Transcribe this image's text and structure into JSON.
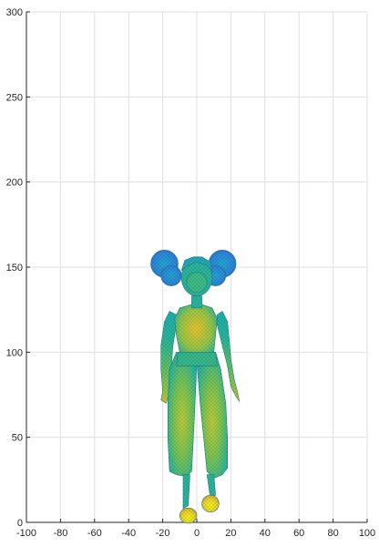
{
  "chart_data": {
    "type": "scatter",
    "title": "",
    "xlabel": "",
    "ylabel": "",
    "xlim": [
      -100,
      100
    ],
    "ylim": [
      0,
      300
    ],
    "x_ticks": [
      -100,
      -80,
      -60,
      -40,
      -20,
      0,
      20,
      40,
      60,
      80,
      100
    ],
    "y_ticks": [
      0,
      50,
      100,
      150,
      200,
      250,
      300
    ],
    "grid": true,
    "colormap": "parula",
    "colors": {
      "low": "#3e26a8",
      "mid_low": "#2a8bd4",
      "mid": "#1fb5a6",
      "mid_high": "#8cc63f",
      "high": "#f9d923",
      "peak": "#f9fb0e"
    },
    "figure": {
      "name": "character-mesh",
      "x_range": [
        -27,
        27
      ],
      "y_range": [
        0,
        164
      ],
      "shoe_left_x": [
        -10,
        0
      ],
      "shoe_right_x": [
        4,
        14
      ],
      "hair_buns_y": [
        133,
        165
      ]
    }
  }
}
